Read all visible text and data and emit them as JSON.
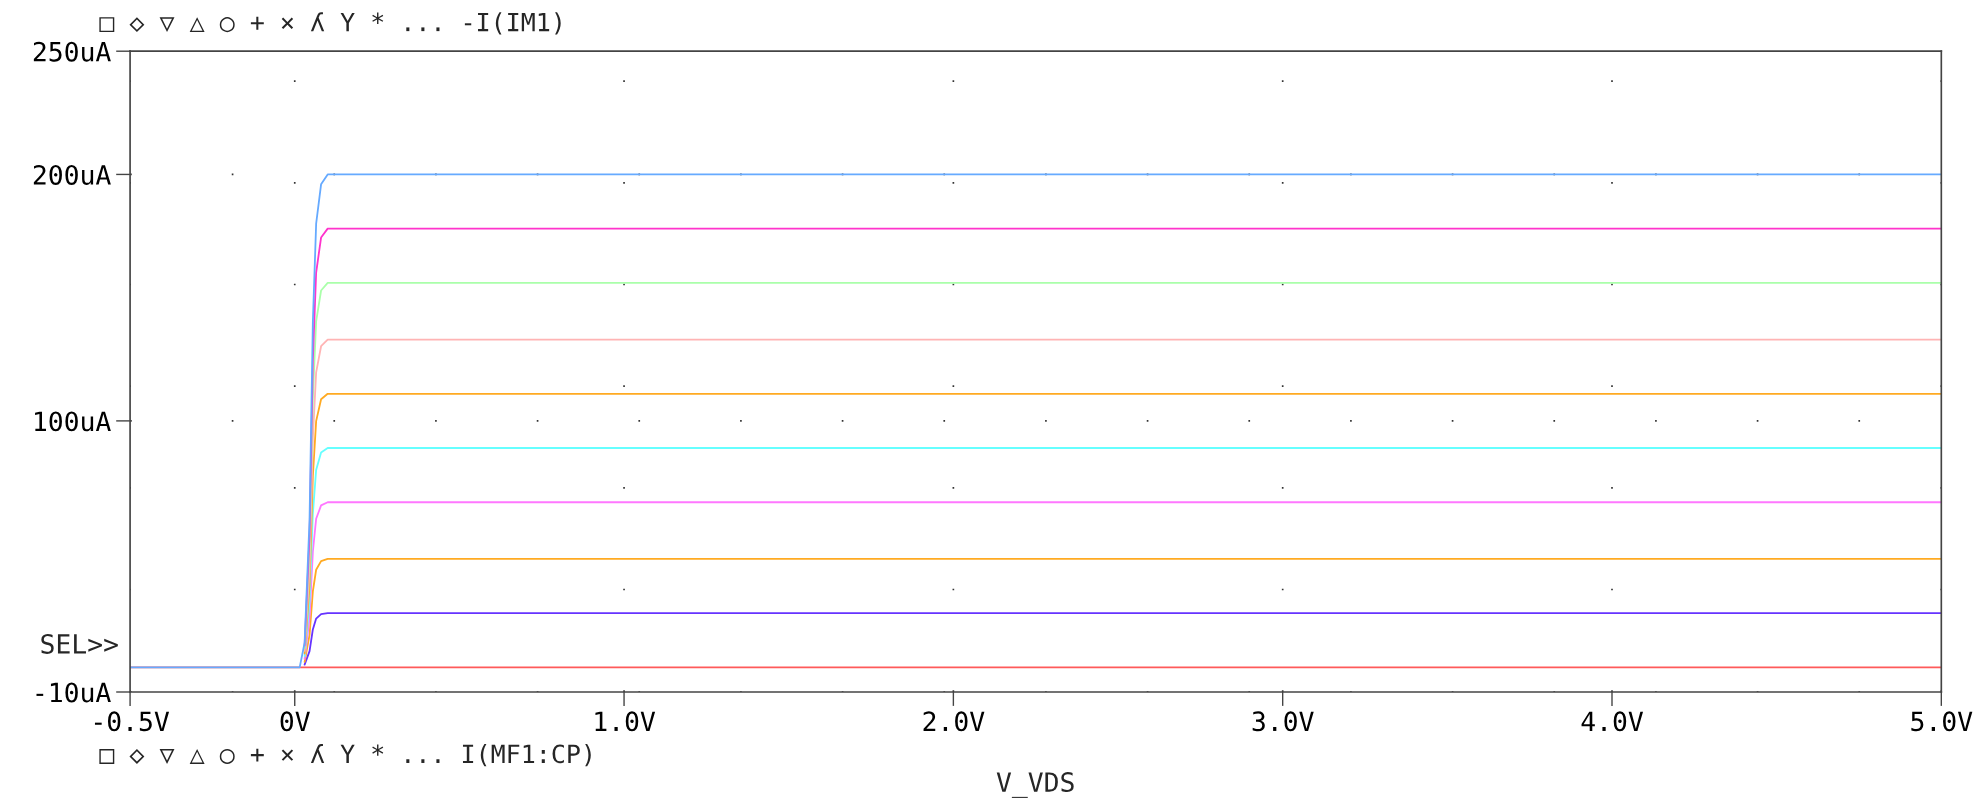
{
  "chart_data": {
    "type": "line",
    "xlabel": "V_VDS",
    "annotations": [
      "□ ◇ ▽ △ ○ + × ʎ Y * ... -I(IM1)",
      "□ ◇ ▽ △ ○ + × ʎ Y * ... I(MF1:CP)",
      "SEL>>"
    ],
    "xlim": [
      -0.5,
      5.0
    ],
    "xticks": [
      {
        "value": -0.5,
        "label": "-0.5V"
      },
      {
        "value": 0,
        "label": "0V"
      },
      {
        "value": 1.0,
        "label": "1.0V"
      },
      {
        "value": 2.0,
        "label": "2.0V"
      },
      {
        "value": 3.0,
        "label": "3.0V"
      },
      {
        "value": 4.0,
        "label": "4.0V"
      },
      {
        "value": 5.0,
        "label": "5.0V"
      }
    ],
    "ylim": [
      -10,
      250
    ],
    "yticks": [
      {
        "value": -10,
        "label": "-10uA"
      },
      {
        "value": 100,
        "label": "100uA"
      },
      {
        "value": 200,
        "label": "200uA"
      },
      {
        "value": 250,
        "label": "250uA"
      }
    ],
    "grid": true,
    "line_style": "solid",
    "series": [
      {
        "color": "#ff5a5a",
        "x": [
          -0.5,
          5.0
        ],
        "values": [
          0,
          0
        ]
      },
      {
        "color": "#6633ff",
        "x": [
          0.03,
          0.045,
          0.055,
          0.065,
          0.08,
          0.1,
          5.0
        ],
        "values": [
          1.1,
          6.6,
          15.4,
          19.8,
          21.6,
          22,
          22
        ]
      },
      {
        "color": "#ffaa22",
        "x": [
          0.03,
          0.045,
          0.055,
          0.065,
          0.08,
          0.1,
          5.0
        ],
        "values": [
          2.2,
          13.2,
          30.8,
          39.6,
          43.1,
          44,
          44
        ]
      },
      {
        "color": "#ff77ff",
        "x": [
          0.03,
          0.045,
          0.055,
          0.065,
          0.08,
          0.1,
          5.0
        ],
        "values": [
          3.4,
          20.1,
          46.9,
          60.3,
          65.7,
          67,
          67
        ]
      },
      {
        "color": "#66ffff",
        "x": [
          0.03,
          0.045,
          0.055,
          0.065,
          0.08,
          0.1,
          5.0
        ],
        "values": [
          4.5,
          26.7,
          62.3,
          80.1,
          87.2,
          89,
          89
        ]
      },
      {
        "color": "#ffaa22",
        "x": [
          0.03,
          0.045,
          0.055,
          0.065,
          0.08,
          0.1,
          5.0
        ],
        "values": [
          5.6,
          33.3,
          77.7,
          99.9,
          108.8,
          111,
          111
        ]
      },
      {
        "color": "#ffb4b4",
        "x": [
          0.03,
          0.045,
          0.055,
          0.065,
          0.08,
          0.1,
          5.0
        ],
        "values": [
          6.7,
          39.9,
          93.1,
          119.7,
          130.3,
          133,
          133
        ]
      },
      {
        "color": "#aaffaa",
        "x": [
          0.03,
          0.045,
          0.055,
          0.065,
          0.08,
          0.1,
          5.0
        ],
        "values": [
          7.8,
          46.8,
          109.2,
          140.4,
          152.9,
          156,
          156
        ]
      },
      {
        "color": "#ff33cc",
        "x": [
          0.03,
          0.045,
          0.055,
          0.065,
          0.08,
          0.1,
          5.0
        ],
        "values": [
          8.9,
          53.4,
          124.6,
          160.2,
          174.4,
          178,
          178
        ]
      },
      {
        "color": "#66aaff",
        "x": [
          -0.5,
          0.015,
          0.03,
          0.045,
          0.055,
          0.065,
          0.08,
          0.1,
          5.0
        ],
        "values": [
          0,
          0,
          10,
          60,
          140,
          180,
          196,
          200,
          200
        ]
      }
    ]
  }
}
